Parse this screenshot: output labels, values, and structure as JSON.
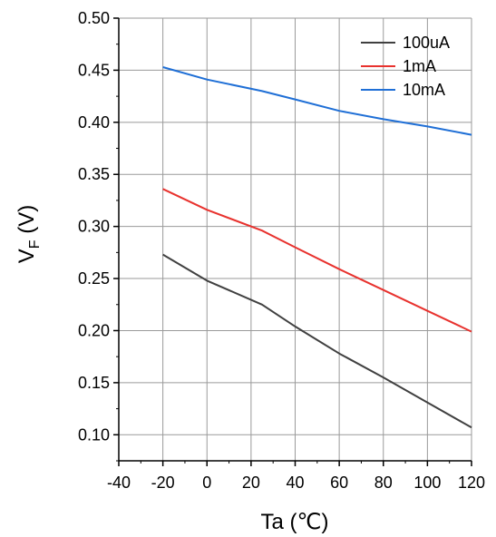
{
  "chart_data": {
    "type": "line",
    "xlabel": "Ta (℃)",
    "ylabel": "VF (V)",
    "ylabel_main": "V",
    "ylabel_sub": "F",
    "ylabel_rest": " (V)",
    "xlim": [
      -40,
      120
    ],
    "ylim": [
      0.075,
      0.5
    ],
    "xticks": [
      -40,
      -20,
      0,
      20,
      40,
      60,
      80,
      100,
      120
    ],
    "xtick_labels": [
      "-40",
      "-20",
      "0",
      "20",
      "40",
      "60",
      "80",
      "100",
      "120"
    ],
    "yticks": [
      0.1,
      0.15,
      0.2,
      0.25,
      0.3,
      0.35,
      0.4,
      0.45,
      0.5
    ],
    "ytick_labels": [
      "0.10",
      "0.15",
      "0.20",
      "0.25",
      "0.30",
      "0.35",
      "0.40",
      "0.45",
      "0.50"
    ],
    "grid": true,
    "legend_position": "top-right",
    "series": [
      {
        "name": "100uA",
        "color": "#404040",
        "x": [
          -20,
          0,
          25,
          40,
          60,
          80,
          100,
          120
        ],
        "y": [
          0.273,
          0.248,
          0.225,
          0.204,
          0.178,
          0.155,
          0.131,
          0.107
        ]
      },
      {
        "name": "1mA",
        "color": "#e8322e",
        "x": [
          -20,
          0,
          25,
          40,
          60,
          80,
          100,
          120
        ],
        "y": [
          0.336,
          0.316,
          0.296,
          0.28,
          0.259,
          0.239,
          0.219,
          0.199
        ]
      },
      {
        "name": "10mA",
        "color": "#1f6fd6",
        "x": [
          -20,
          0,
          25,
          40,
          60,
          80,
          100,
          120
        ],
        "y": [
          0.453,
          0.441,
          0.43,
          0.422,
          0.411,
          0.403,
          0.396,
          0.388
        ]
      }
    ]
  }
}
